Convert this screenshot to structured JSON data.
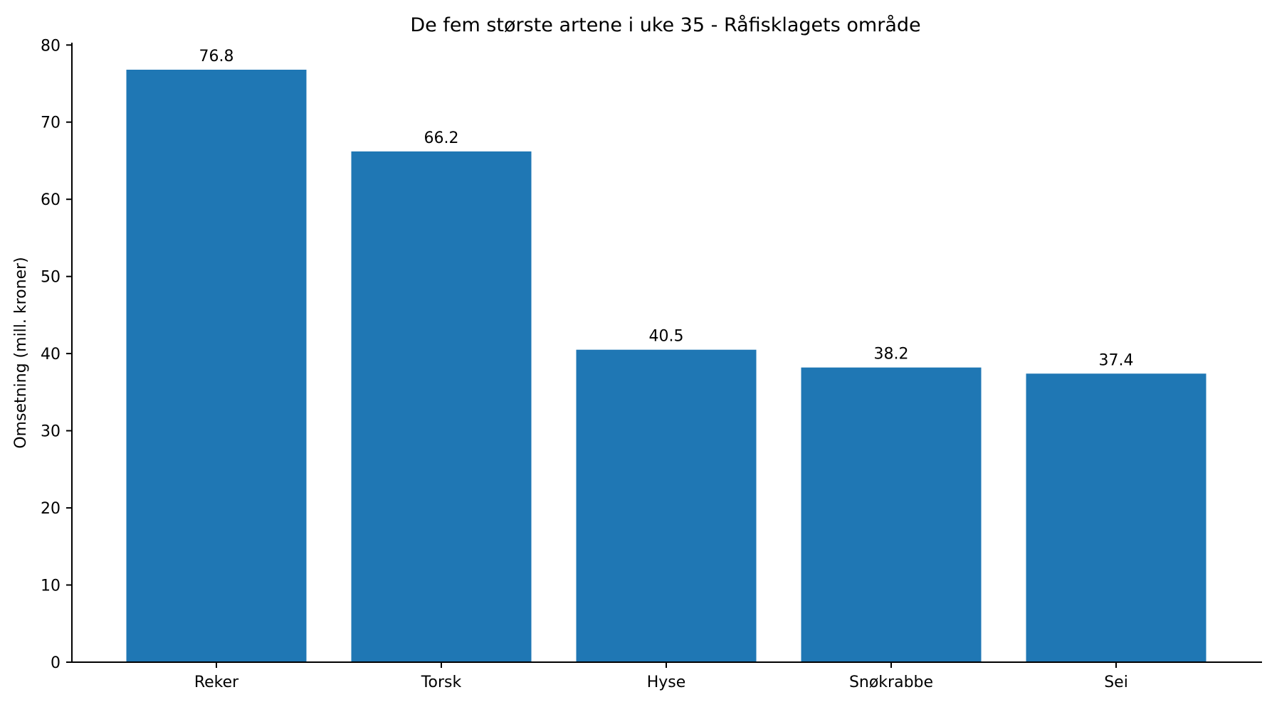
{
  "chart_data": {
    "type": "bar",
    "title": "De fem største artene i uke 35 - Råfisklagets område",
    "xlabel": "",
    "ylabel": "Omsetning (mill. kroner)",
    "categories": [
      "Reker",
      "Torsk",
      "Hyse",
      "Snøkrabbe",
      "Sei"
    ],
    "values": [
      76.8,
      66.2,
      40.5,
      38.2,
      37.4
    ],
    "value_labels": [
      "76.8",
      "66.2",
      "40.5",
      "38.2",
      "37.4"
    ],
    "ylim": [
      0,
      80.3
    ],
    "yticks": [
      0,
      10,
      20,
      30,
      40,
      50,
      60,
      70,
      80
    ],
    "bar_color": "#1f77b4",
    "grid": false,
    "legend": "none"
  }
}
